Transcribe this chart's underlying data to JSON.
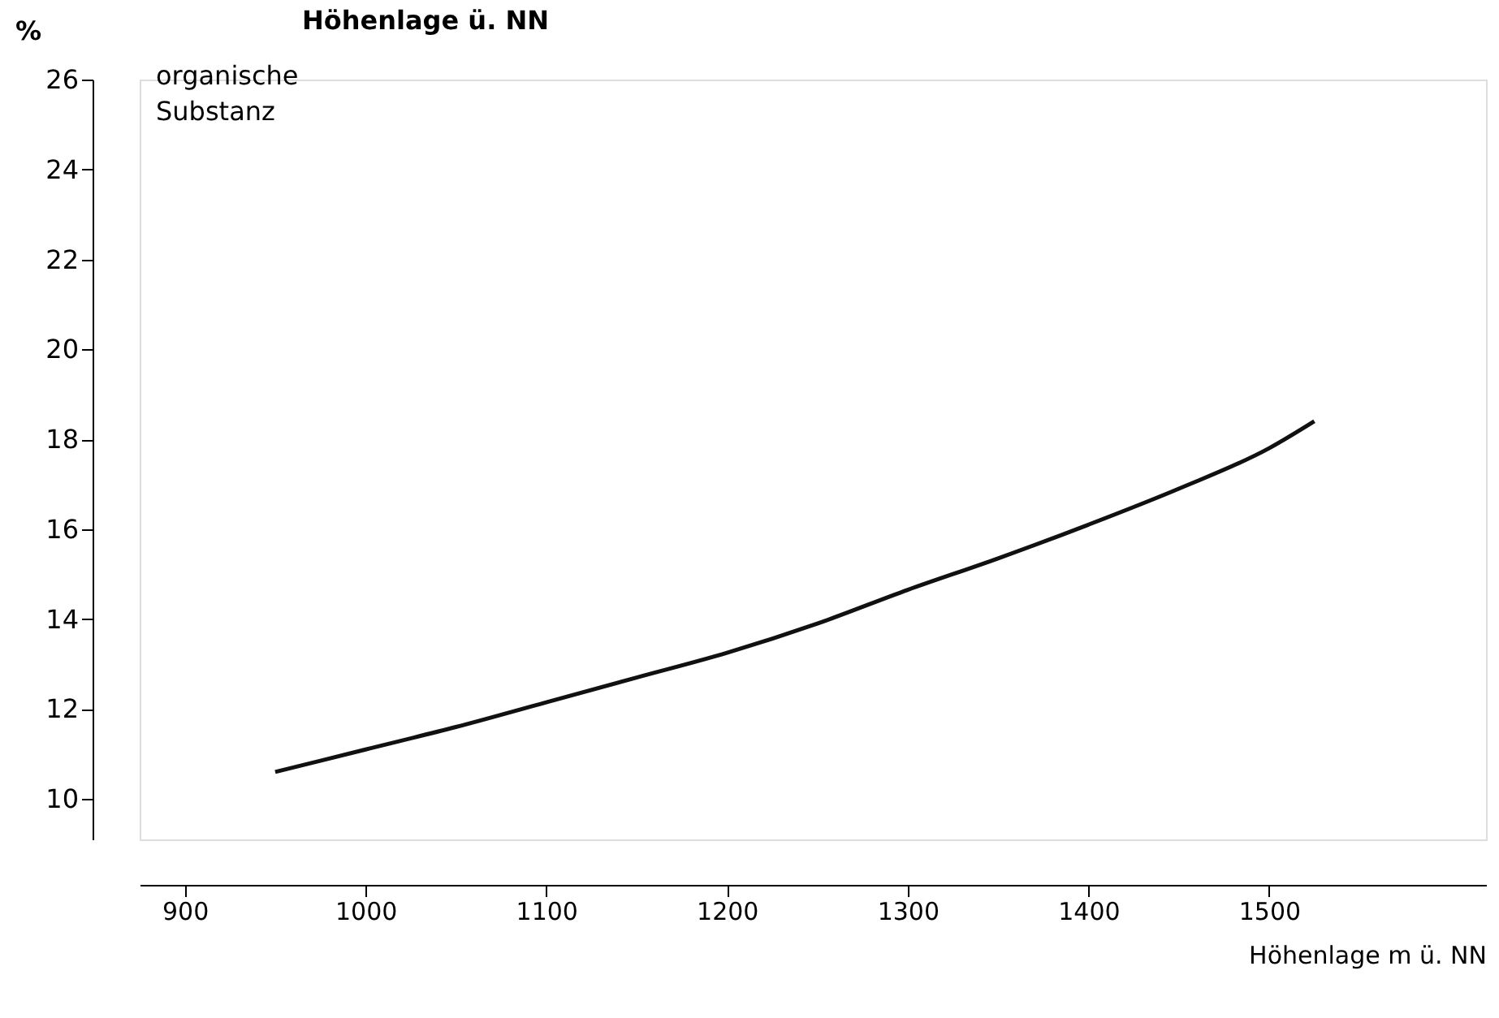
{
  "chart_data": {
    "type": "line",
    "title": "Höhenlage ü. NN",
    "ylabel": "%",
    "xlabel": "Höhenlage m ü. NN",
    "annotations": [
      "organische Substanz"
    ],
    "x": [
      950,
      1000,
      1050,
      1100,
      1150,
      1200,
      1250,
      1300,
      1350,
      1400,
      1450,
      1500,
      1525
    ],
    "series": [
      {
        "color": "#111111",
        "values": [
          10.6,
          11.1,
          11.6,
          12.15,
          12.7,
          13.25,
          13.9,
          14.65,
          15.35,
          16.1,
          16.9,
          17.8,
          18.4
        ]
      }
    ],
    "xlim": [
      875,
      1620
    ],
    "ylim": [
      9.1,
      26
    ],
    "xticks": [
      900,
      1000,
      1100,
      1200,
      1300,
      1400,
      1500
    ],
    "yticks": [
      10,
      12,
      14,
      16,
      18,
      20,
      22,
      24,
      26
    ],
    "grid": false,
    "marker": "none",
    "line_style": "solid"
  }
}
